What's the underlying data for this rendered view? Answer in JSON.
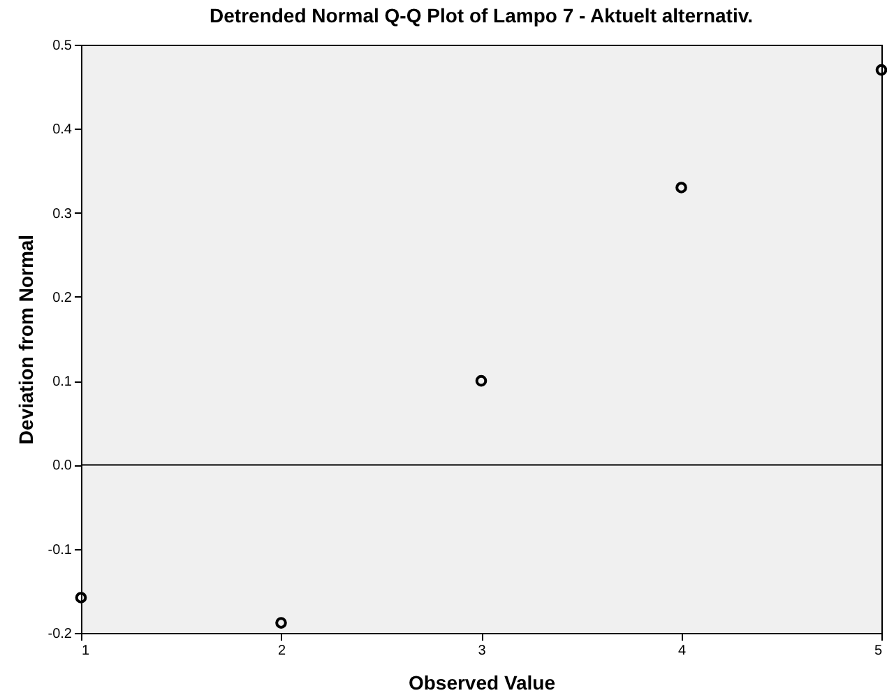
{
  "chart_data": {
    "type": "scatter",
    "title": "Detrended Normal Q-Q Plot of Lampo 7 - Aktuelt alternativ.",
    "xlabel": "Observed Value",
    "ylabel": "Deviation from Normal",
    "x": [
      1,
      2,
      3,
      4,
      5
    ],
    "series": [
      {
        "color": "#000000",
        "values": [
          -0.158,
          -0.188,
          0.1,
          0.33,
          0.47
        ]
      }
    ],
    "xlim": [
      1,
      5
    ],
    "xticks": [
      1,
      2,
      3,
      4,
      5
    ],
    "ylim": [
      -0.2,
      0.5
    ],
    "yticks": [
      -0.2,
      -0.1,
      {
        "value": 0,
        "label": "0.0"
      },
      0.1,
      0.2,
      0.3,
      0.4,
      0.5
    ],
    "ref_lines": [
      {
        "axis": "y",
        "value": 0,
        "color": "#000000"
      }
    ],
    "marker": "circle",
    "grid": false
  }
}
